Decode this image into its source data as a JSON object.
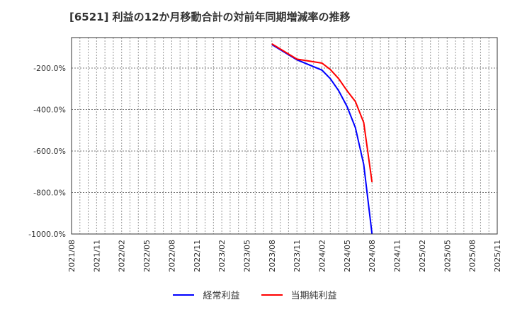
{
  "title": "[6521]  利益の12か月移動合計の対前年同期増減率の推移",
  "colors": {
    "ordinary_profit": "#0000ff",
    "net_income": "#ff0000",
    "grid": "#999999",
    "axis": "#333333"
  },
  "chart_data": {
    "type": "line",
    "title": "[6521] 利益の12か月移動合計の対前年同期増減率の推移",
    "xlabel": "",
    "ylabel": "",
    "ylim": [
      -1000,
      -50
    ],
    "y_ticks": [
      "-200.0%",
      "-400.0%",
      "-600.0%",
      "-800.0%",
      "-1000.0%"
    ],
    "y_tick_values": [
      -200,
      -400,
      -600,
      -800,
      -1000
    ],
    "x_ticks": [
      "2021/08",
      "2021/11",
      "2022/02",
      "2022/05",
      "2022/08",
      "2022/11",
      "2023/02",
      "2023/05",
      "2023/08",
      "2023/11",
      "2024/02",
      "2024/05",
      "2024/08",
      "2024/11",
      "2025/02",
      "2025/05",
      "2025/08",
      "2025/11"
    ],
    "grid": true,
    "legend_position": "bottom",
    "x": [
      "2023/08",
      "2023/11",
      "2024/02",
      "2024/03",
      "2024/04",
      "2024/05",
      "2024/06",
      "2024/07",
      "2024/08"
    ],
    "series": [
      {
        "name": "経常利益",
        "color": "#0000ff",
        "values": [
          -87,
          -160,
          -210,
          -251,
          -309,
          -385,
          -487,
          -665,
          -1000
        ]
      },
      {
        "name": "当期純利益",
        "color": "#ff0000",
        "values": [
          -83,
          -157,
          -176,
          -207,
          -251,
          -309,
          -361,
          -463,
          -750
        ]
      }
    ]
  },
  "legend": [
    {
      "label": "経常利益",
      "color": "#0000ff"
    },
    {
      "label": "当期純利益",
      "color": "#ff0000"
    }
  ]
}
